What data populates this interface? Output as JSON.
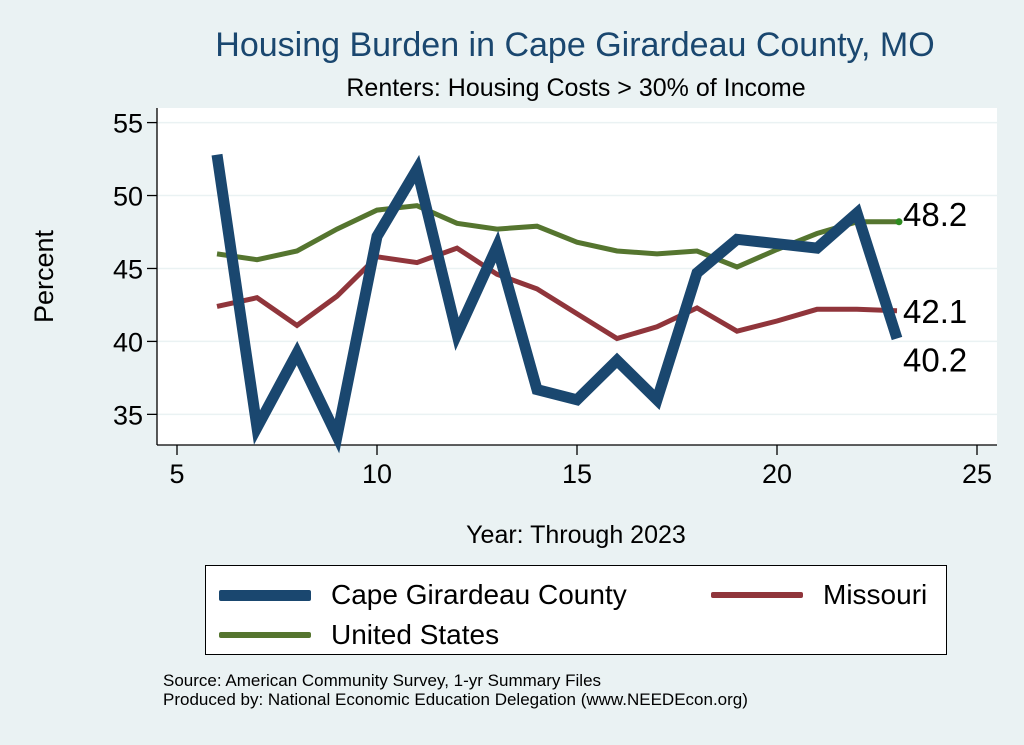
{
  "chart_data": {
    "type": "line",
    "title": "Housing Burden in Cape Girardeau County, MO",
    "subtitle": "Renters: Housing Costs > 30% of Income",
    "xlabel": "Year: Through 2023",
    "ylabel": "Percent",
    "xlim": [
      4.5,
      25.5
    ],
    "ylim": [
      32.9,
      56
    ],
    "xticks": [
      5,
      10,
      15,
      20,
      25
    ],
    "yticks": [
      35,
      40,
      45,
      50,
      55
    ],
    "grid": true,
    "series": [
      {
        "name": "Cape Girardeau County",
        "color": "#1a476f",
        "x": [
          6,
          7,
          8,
          9,
          10,
          11,
          12,
          13,
          14,
          15,
          16,
          17,
          18,
          19,
          20,
          21,
          22,
          23
        ],
        "values": [
          52.8,
          34.1,
          39.2,
          33.5,
          47.2,
          51.8,
          40.5,
          46.5,
          36.7,
          36.0,
          38.7,
          36.0,
          44.7,
          47.0,
          46.7,
          46.4,
          48.8,
          40.2
        ],
        "end_label": "40.2"
      },
      {
        "name": "Missouri",
        "color": "#90353b",
        "x": [
          6,
          7,
          8,
          9,
          10,
          11,
          12,
          13,
          14,
          15,
          16,
          17,
          18,
          19,
          20,
          21,
          22,
          23
        ],
        "values": [
          42.4,
          43.0,
          41.1,
          43.1,
          45.8,
          45.4,
          46.4,
          44.6,
          43.6,
          41.9,
          40.2,
          41.0,
          42.3,
          40.7,
          41.4,
          42.2,
          42.2,
          42.1
        ],
        "end_label": "42.1"
      },
      {
        "name": "United States",
        "color": "#55752f",
        "x": [
          6,
          7,
          8,
          9,
          10,
          11,
          12,
          13,
          14,
          15,
          16,
          17,
          18,
          19,
          20,
          21,
          22,
          23
        ],
        "values": [
          46.0,
          45.6,
          46.2,
          47.7,
          49.0,
          49.3,
          48.1,
          47.7,
          47.9,
          46.8,
          46.2,
          46.0,
          46.2,
          45.1,
          46.3,
          47.4,
          48.2,
          48.2
        ],
        "end_label": "48.2"
      }
    ]
  },
  "source": {
    "line1": "Source: American Community Survey, 1-yr Summary Files",
    "line2": "Produced by: National Economic Education Delegation (www.NEEDEcon.org)"
  }
}
